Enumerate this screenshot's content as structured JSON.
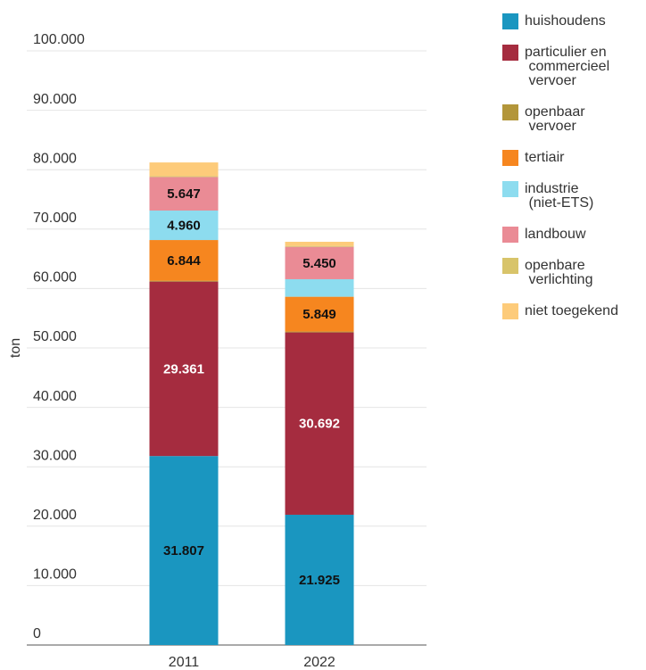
{
  "chart_data": {
    "type": "stacked-bar",
    "y_label": "ton",
    "categories": [
      "2011",
      "2022"
    ],
    "series": [
      {
        "name": "huishoudens",
        "color": "#1a96c0",
        "values": [
          31807,
          21925
        ],
        "value_labels": [
          "31.807",
          "21.925"
        ]
      },
      {
        "name": "particulier en commercieel vervoer",
        "color": "#a52c3f",
        "values": [
          29361,
          30692
        ],
        "value_labels": [
          "29.361",
          "30.692"
        ]
      },
      {
        "name": "openbaar vervoer",
        "color": "#b3963a",
        "values": [
          150,
          150
        ],
        "value_labels": [
          null,
          null
        ]
      },
      {
        "name": "tertiair",
        "color": "#f6861f",
        "values": [
          6844,
          5849
        ],
        "value_labels": [
          "6.844",
          "5.849"
        ]
      },
      {
        "name": "industrie (niet-ETS)",
        "color": "#8ddcef",
        "values": [
          4960,
          2950
        ],
        "value_labels": [
          "4.960",
          null
        ]
      },
      {
        "name": "landbouw",
        "color": "#ea8b95",
        "values": [
          5647,
          5450
        ],
        "value_labels": [
          "5.647",
          "5.450"
        ]
      },
      {
        "name": "openbare verlichting",
        "color": "#d8c46a",
        "values": [
          150,
          150
        ],
        "value_labels": [
          null,
          null
        ]
      },
      {
        "name": "niet toegekend",
        "color": "#fdcb7a",
        "values": [
          2300,
          700
        ],
        "value_labels": [
          null,
          null
        ]
      }
    ],
    "ylim": [
      0,
      100000
    ],
    "yticks": [
      0,
      {
        "value": 10000,
        "label": "10.000"
      },
      {
        "value": 20000,
        "label": "20.000"
      },
      {
        "value": 30000,
        "label": "30.000"
      },
      {
        "value": 40000,
        "label": "40.000"
      },
      {
        "value": 50000,
        "label": "50.000"
      },
      {
        "value": 60000,
        "label": "60.000"
      },
      {
        "value": 70000,
        "label": "70.000"
      },
      {
        "value": 80000,
        "label": "80.000"
      },
      {
        "value": 90000,
        "label": "90.000"
      },
      {
        "value": 100000,
        "label": "100.000"
      }
    ],
    "grid": true,
    "legend": "right"
  }
}
